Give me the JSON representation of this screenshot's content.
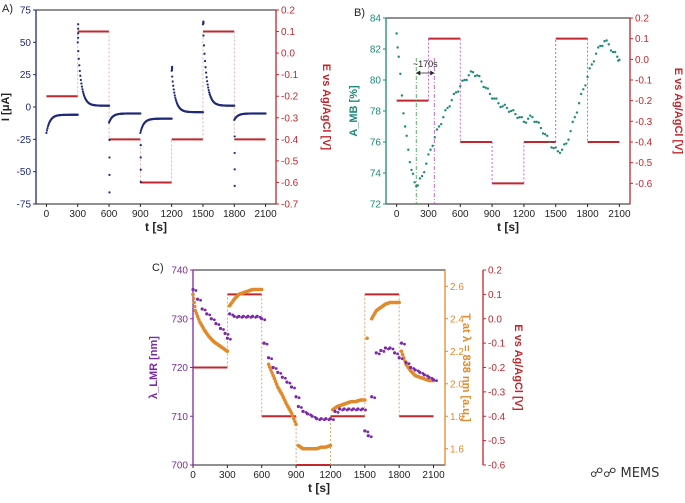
{
  "colors": {
    "potential": "#c0272d",
    "current": "#1f2a7a",
    "absorbance": "#1b8a78",
    "absorbance_dash": "#2e9e3a",
    "switch_dash": "#c040c0",
    "lmr": "#7a2aa6",
    "transmission": "#e08a2c",
    "axis": "#222222"
  },
  "watermark": {
    "icon": "wechat-icon",
    "text": "MEMS"
  },
  "chart_data": [
    {
      "panel": "A)",
      "type": "scatter",
      "xlabel": "t [s]",
      "ylabel": "I [μA]",
      "y2label": "E vs Ag/AgCl [V]",
      "xlim": [
        -100,
        2200
      ],
      "ylim": [
        -75,
        75
      ],
      "y2lim": [
        -0.7,
        0.2
      ],
      "xticks": [
        "0",
        "300",
        "600",
        "900",
        "1200",
        "1500",
        "1800",
        "2100"
      ],
      "yticks": [
        "-75",
        "-50",
        "-25",
        "0",
        "25",
        "50",
        "75"
      ],
      "y2ticks": [
        "-0.7",
        "-0.6",
        "-0.5",
        "-0.4",
        "-0.3",
        "-0.2",
        "-0.1",
        "0.0",
        "0.1",
        "0.2"
      ],
      "potential_steps": [
        {
          "t0": 0,
          "t1": 300,
          "E": -0.2
        },
        {
          "t0": 300,
          "t1": 600,
          "E": 0.1
        },
        {
          "t0": 600,
          "t1": 900,
          "E": -0.4
        },
        {
          "t0": 900,
          "t1": 1200,
          "E": -0.6
        },
        {
          "t0": 1200,
          "t1": 1500,
          "E": -0.4
        },
        {
          "t0": 1500,
          "t1": 1800,
          "E": 0.1
        },
        {
          "t0": 1800,
          "t1": 2100,
          "E": -0.4
        }
      ],
      "current_segments": [
        {
          "t0": 0,
          "t1": 300,
          "start": -20,
          "end": -6,
          "spike": null
        },
        {
          "t0": 300,
          "t1": 600,
          "start": 50,
          "end": 1,
          "spike": 64
        },
        {
          "t0": 600,
          "t1": 900,
          "start": -12,
          "end": -5,
          "spike": -66
        },
        {
          "t0": 900,
          "t1": 1200,
          "start": -20,
          "end": -9,
          "spike": -58
        },
        {
          "t0": 1200,
          "t1": 1500,
          "start": 28,
          "end": -4,
          "spike": 31
        },
        {
          "t0": 1500,
          "t1": 1800,
          "start": 64,
          "end": 1,
          "spike": 66
        },
        {
          "t0": 1800,
          "t1": 2100,
          "start": -10,
          "end": -5,
          "spike": -61
        }
      ]
    },
    {
      "panel": "B)",
      "type": "scatter",
      "xlabel": "t [s]",
      "ylabel": "A_MB [%]",
      "y2label": "E vs Ag/AgCl [V]",
      "annotation": "~170s",
      "xlim": [
        -100,
        2200
      ],
      "ylim": [
        72,
        84
      ],
      "y2lim": [
        -0.7,
        0.2
      ],
      "xticks": [
        "0",
        "300",
        "600",
        "900",
        "1200",
        "1500",
        "1800",
        "2100"
      ],
      "yticks": [
        "72",
        "74",
        "76",
        "78",
        "80",
        "82",
        "84"
      ],
      "y2ticks": [
        "-0.6",
        "-0.5",
        "-0.4",
        "-0.3",
        "-0.2",
        "-0.1",
        "0.0",
        "0.1",
        "0.2"
      ],
      "potential_steps": [
        {
          "t0": 0,
          "t1": 300,
          "E": -0.2
        },
        {
          "t0": 300,
          "t1": 600,
          "E": 0.1
        },
        {
          "t0": 600,
          "t1": 900,
          "E": -0.4
        },
        {
          "t0": 900,
          "t1": 1200,
          "E": -0.6
        },
        {
          "t0": 1200,
          "t1": 1500,
          "E": -0.4
        },
        {
          "t0": 1500,
          "t1": 1800,
          "E": 0.1
        },
        {
          "t0": 1800,
          "t1": 2100,
          "E": -0.4
        }
      ],
      "absorbance_points": [
        [
          0,
          83.0
        ],
        [
          20,
          81.5
        ],
        [
          50,
          79.0
        ],
        [
          80,
          77.0
        ],
        [
          110,
          75.5
        ],
        [
          140,
          74.2
        ],
        [
          170,
          73.4
        ],
        [
          200,
          73.2
        ],
        [
          240,
          73.8
        ],
        [
          280,
          74.6
        ],
        [
          320,
          75.5
        ],
        [
          360,
          76.3
        ],
        [
          400,
          77.0
        ],
        [
          440,
          77.6
        ],
        [
          480,
          78.2
        ],
        [
          520,
          78.7
        ],
        [
          560,
          79.2
        ],
        [
          600,
          79.6
        ],
        [
          640,
          80.0
        ],
        [
          680,
          80.3
        ],
        [
          720,
          80.5
        ],
        [
          760,
          80.3
        ],
        [
          800,
          79.9
        ],
        [
          840,
          79.5
        ],
        [
          880,
          79.1
        ],
        [
          920,
          78.8
        ],
        [
          960,
          78.5
        ],
        [
          1000,
          78.3
        ],
        [
          1040,
          78.2
        ],
        [
          1080,
          78.0
        ],
        [
          1120,
          77.8
        ],
        [
          1160,
          77.6
        ],
        [
          1200,
          77.3
        ],
        [
          1240,
          77.5
        ],
        [
          1280,
          77.6
        ],
        [
          1320,
          77.3
        ],
        [
          1360,
          76.9
        ],
        [
          1400,
          76.5
        ],
        [
          1440,
          76.0
        ],
        [
          1480,
          75.6
        ],
        [
          1520,
          75.4
        ],
        [
          1560,
          75.5
        ],
        [
          1600,
          75.9
        ],
        [
          1640,
          76.7
        ],
        [
          1680,
          77.6
        ],
        [
          1720,
          78.5
        ],
        [
          1760,
          79.4
        ],
        [
          1800,
          80.2
        ],
        [
          1840,
          81.0
        ],
        [
          1880,
          81.7
        ],
        [
          1920,
          82.2
        ],
        [
          1960,
          82.5
        ],
        [
          2000,
          82.3
        ],
        [
          2040,
          81.8
        ],
        [
          2080,
          81.5
        ],
        [
          2100,
          81.3
        ]
      ],
      "switch_markers": [
        {
          "t": 185,
          "style": "green-dash"
        },
        {
          "t": 355,
          "style": "magenta-dash"
        }
      ]
    },
    {
      "panel": "C)",
      "type": "scatter",
      "xlabel": "t [s]",
      "ylabel": "λ_LMR [nm]",
      "y2label": "T at λ = 838 nm [a.u.]",
      "y3label": "E vs Ag/AgCl [V]",
      "xlim": [
        0,
        2200
      ],
      "ylim": [
        700,
        740
      ],
      "y2lim": [
        1.5,
        2.7
      ],
      "y3lim": [
        -0.6,
        0.2
      ],
      "xticks": [
        "0",
        "300",
        "600",
        "900",
        "1200",
        "1500",
        "1800",
        "2100"
      ],
      "yticks": [
        "700",
        "710",
        "720",
        "730",
        "740"
      ],
      "y2ticks": [
        "1.6",
        "1.8",
        "2.0",
        "2.2",
        "2.4",
        "2.6"
      ],
      "y3ticks": [
        "-0.6",
        "-0.5",
        "-0.4",
        "-0.3",
        "-0.2",
        "-0.1",
        "0.0",
        "0.1",
        "0.2"
      ],
      "potential_steps": [
        {
          "t0": 0,
          "t1": 300,
          "E": -0.2
        },
        {
          "t0": 300,
          "t1": 600,
          "E": 0.1
        },
        {
          "t0": 600,
          "t1": 900,
          "E": -0.4
        },
        {
          "t0": 900,
          "t1": 1200,
          "E": -0.6
        },
        {
          "t0": 1200,
          "t1": 1500,
          "E": -0.4
        },
        {
          "t0": 1500,
          "t1": 1800,
          "E": 0.1
        },
        {
          "t0": 1800,
          "t1": 2100,
          "E": -0.4
        }
      ],
      "lmr_points": [
        [
          0,
          736
        ],
        [
          40,
          734
        ],
        [
          80,
          732
        ],
        [
          120,
          731
        ],
        [
          160,
          730
        ],
        [
          200,
          729
        ],
        [
          240,
          728
        ],
        [
          280,
          727
        ],
        [
          300,
          726
        ],
        [
          320,
          731
        ],
        [
          360,
          730.5
        ],
        [
          400,
          730.5
        ],
        [
          440,
          730.5
        ],
        [
          480,
          730.5
        ],
        [
          520,
          730.5
        ],
        [
          560,
          730.5
        ],
        [
          600,
          730
        ],
        [
          620,
          725
        ],
        [
          660,
          722
        ],
        [
          700,
          720
        ],
        [
          740,
          719
        ],
        [
          780,
          718
        ],
        [
          820,
          717
        ],
        [
          860,
          716
        ],
        [
          900,
          714
        ],
        [
          920,
          712
        ],
        [
          960,
          711
        ],
        [
          1000,
          710.5
        ],
        [
          1040,
          710
        ],
        [
          1080,
          709.5
        ],
        [
          1120,
          709.5
        ],
        [
          1160,
          709.5
        ],
        [
          1200,
          709.5
        ],
        [
          1240,
          711
        ],
        [
          1280,
          711.5
        ],
        [
          1320,
          711.5
        ],
        [
          1360,
          711.5
        ],
        [
          1400,
          711.5
        ],
        [
          1440,
          711.5
        ],
        [
          1480,
          711.5
        ],
        [
          1500,
          707
        ],
        [
          1530,
          706
        ],
        [
          1560,
          714
        ],
        [
          1600,
          723
        ],
        [
          1640,
          723.5
        ],
        [
          1680,
          724
        ],
        [
          1720,
          724
        ],
        [
          1760,
          723
        ],
        [
          1800,
          722
        ],
        [
          1820,
          725
        ],
        [
          1860,
          721
        ],
        [
          1900,
          720
        ],
        [
          1940,
          719.5
        ],
        [
          1980,
          719
        ],
        [
          2020,
          718.5
        ],
        [
          2060,
          718
        ],
        [
          2100,
          717.5
        ]
      ],
      "transmission_points": [
        [
          0,
          2.55
        ],
        [
          20,
          2.45
        ],
        [
          60,
          2.38
        ],
        [
          100,
          2.33
        ],
        [
          140,
          2.29
        ],
        [
          180,
          2.26
        ],
        [
          220,
          2.24
        ],
        [
          260,
          2.22
        ],
        [
          300,
          2.2
        ],
        [
          320,
          2.48
        ],
        [
          360,
          2.52
        ],
        [
          400,
          2.55
        ],
        [
          440,
          2.56
        ],
        [
          480,
          2.57
        ],
        [
          520,
          2.58
        ],
        [
          560,
          2.58
        ],
        [
          600,
          2.58
        ],
        [
          620,
          2.25
        ],
        [
          660,
          2.12
        ],
        [
          700,
          2.05
        ],
        [
          740,
          1.98
        ],
        [
          780,
          1.93
        ],
        [
          820,
          1.87
        ],
        [
          860,
          1.82
        ],
        [
          900,
          1.75
        ],
        [
          920,
          1.62
        ],
        [
          960,
          1.6
        ],
        [
          1000,
          1.6
        ],
        [
          1040,
          1.6
        ],
        [
          1080,
          1.6
        ],
        [
          1120,
          1.61
        ],
        [
          1160,
          1.61
        ],
        [
          1200,
          1.62
        ],
        [
          1220,
          1.84
        ],
        [
          1260,
          1.86
        ],
        [
          1300,
          1.87
        ],
        [
          1340,
          1.88
        ],
        [
          1380,
          1.89
        ],
        [
          1420,
          1.89
        ],
        [
          1460,
          1.9
        ],
        [
          1500,
          1.9
        ],
        [
          1520,
          2.28
        ],
        [
          1560,
          2.4
        ],
        [
          1600,
          2.45
        ],
        [
          1640,
          2.47
        ],
        [
          1680,
          2.49
        ],
        [
          1720,
          2.5
        ],
        [
          1760,
          2.5
        ],
        [
          1800,
          2.5
        ],
        [
          1820,
          2.2
        ],
        [
          1860,
          2.12
        ],
        [
          1900,
          2.08
        ],
        [
          1940,
          2.05
        ],
        [
          1980,
          2.04
        ],
        [
          2020,
          2.03
        ],
        [
          2060,
          2.02
        ],
        [
          2100,
          2.02
        ]
      ]
    }
  ]
}
